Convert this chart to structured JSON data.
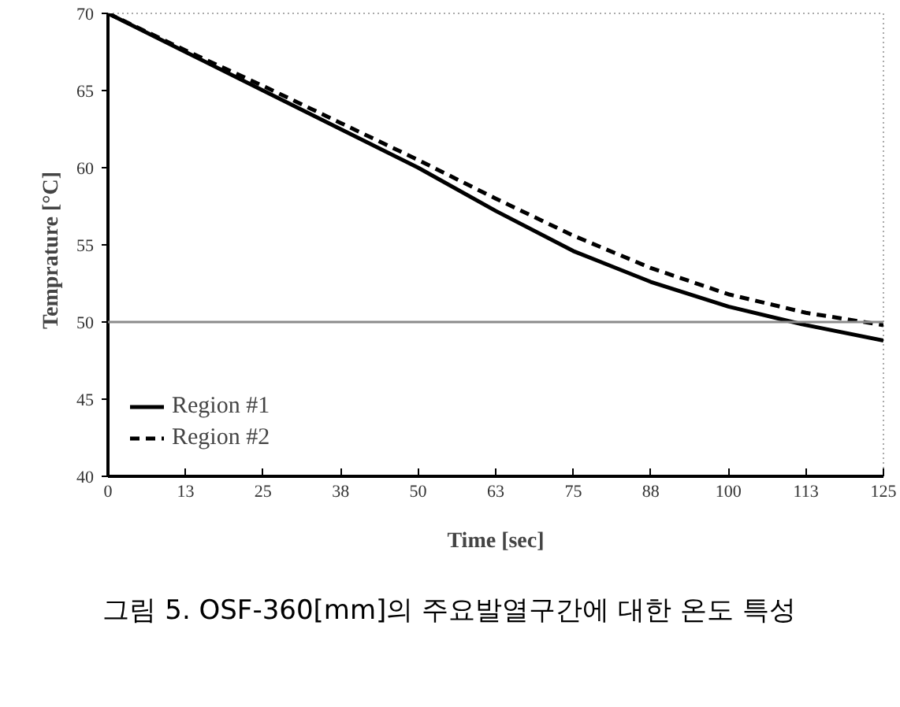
{
  "chart_data": {
    "type": "line",
    "xlabel": "Time [sec]",
    "ylabel": "Temprature   [°C]",
    "x": [
      0,
      12.5,
      25,
      37.5,
      50,
      62.5,
      75,
      87.5,
      100,
      112.5,
      125
    ],
    "series": [
      {
        "name": "Region #1",
        "color": "#000000",
        "line_style": "solid",
        "values": [
          70,
          67.5,
          65,
          62.5,
          60,
          57.2,
          54.6,
          52.6,
          51.0,
          49.8,
          48.8
        ]
      },
      {
        "name": "Region #2",
        "color": "#000000",
        "line_style": "dashed",
        "values": [
          70,
          67.6,
          65.3,
          62.9,
          60.5,
          58.0,
          55.6,
          53.5,
          51.8,
          50.6,
          49.8
        ]
      }
    ],
    "xlim": [
      0,
      125
    ],
    "ylim": [
      40,
      70
    ],
    "xticks": [
      0,
      {
        "value": 12.5,
        "label": "13"
      },
      25,
      {
        "value": 37.5,
        "label": "38"
      },
      50,
      {
        "value": 62.5,
        "label": "63"
      },
      75,
      {
        "value": 87.5,
        "label": "88"
      },
      100,
      {
        "value": 112.5,
        "label": "113"
      },
      125
    ],
    "yticks": [
      40,
      45,
      50,
      55,
      60,
      65,
      70
    ],
    "ref_lines": [
      {
        "axis": "y",
        "value": 50,
        "color": "#8c8c8c"
      }
    ],
    "grid": false,
    "legend": "bottom left",
    "marker": "none",
    "annotations": [
      "그림 5. OSF-360[mm]의 주요발열구간에 대한 온도 특성"
    ]
  }
}
